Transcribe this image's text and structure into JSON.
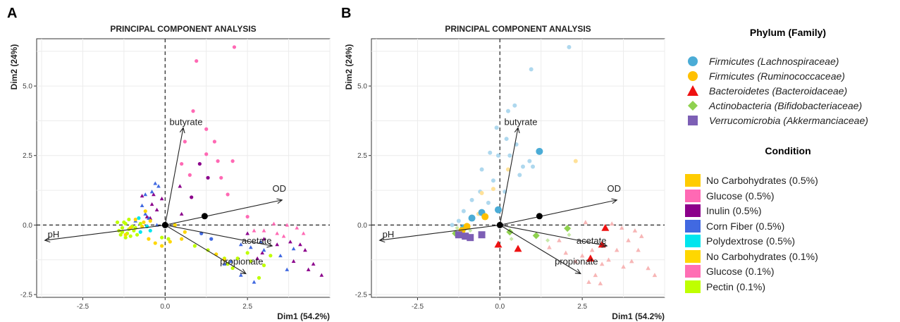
{
  "panel_labels": [
    "A",
    "B"
  ],
  "legend": {
    "phylum_title": "Phylum (Family)",
    "phylum": [
      {
        "label": "Firmicutes (Lachnospiraceae)",
        "color": "#4bacd6",
        "shape": "circle"
      },
      {
        "label": "Firmicutes (Ruminococcaceae)",
        "color": "#ffc000",
        "shape": "circle"
      },
      {
        "label": "Bacteroidetes (Bacteroidaceae)",
        "color": "#ee1111",
        "shape": "triangle"
      },
      {
        "label": "Actinobacteria (Bifidobacteriaceae)",
        "color": "#8fd14f",
        "shape": "diamond"
      },
      {
        "label": "Verrucomicrobia (Akkermanciaceae)",
        "color": "#7d5fb5",
        "shape": "square"
      }
    ],
    "condition_title": "Condition",
    "conditions": [
      {
        "label": "No Carbohydrates (0.5%)",
        "color": "#ffcc00"
      },
      {
        "label": "Glucose (0.5%)",
        "color": "#ff69b4"
      },
      {
        "label": "Inulin (0.5%)",
        "color": "#8b008b"
      },
      {
        "label": "Corn Fiber (0.5%)",
        "color": "#4169e1"
      },
      {
        "label": "Polydextrose (0.5%)",
        "color": "#00e5ee"
      },
      {
        "label": "No Carbohydrates (0.1%)",
        "color": "#ffd700"
      },
      {
        "label": "Glucose (0.1%)",
        "color": "#ff6eb4"
      },
      {
        "label": "Pectin (0.1%)",
        "color": "#bfff00"
      }
    ]
  },
  "chart_data": [
    {
      "type": "scatter",
      "title": "PRINCIPAL COMPONENT ANALYSIS",
      "xlabel": "Dim1 (54.2%)",
      "ylabel": "Dim2 (24%)",
      "xlim": [
        -3.9,
        5.0
      ],
      "ylim": [
        -2.6,
        6.7
      ],
      "xticks": [
        -2.5,
        0.0,
        2.5
      ],
      "xtick_labels": [
        "-2.5",
        "0.0",
        "2.5"
      ],
      "yticks": [
        -2.5,
        0.0,
        2.5,
        5.0
      ],
      "ytick_labels": [
        "-2.5",
        "0.0",
        "2.5",
        "5.0"
      ],
      "grid": true,
      "vectors": [
        {
          "name": "butyrate",
          "x": 0.55,
          "y": 3.5
        },
        {
          "name": "OD",
          "x": 3.55,
          "y": 0.9
        },
        {
          "name": "pH",
          "x": -3.65,
          "y": -0.55
        },
        {
          "name": "acetate",
          "x": 3.25,
          "y": -0.75
        },
        {
          "name": "propionate",
          "x": 2.45,
          "y": -1.75
        }
      ],
      "centroids": [
        {
          "x": 0.0,
          "y": 0.0
        },
        {
          "x": 1.2,
          "y": 0.32
        }
      ],
      "series": [
        {
          "name": "Glucose",
          "color": "#ff69b4",
          "points": [
            [
              2.1,
              6.4
            ],
            [
              0.95,
              5.9
            ],
            [
              0.85,
              4.1
            ],
            [
              1.25,
              3.45
            ],
            [
              1.5,
              3.0
            ],
            [
              1.25,
              2.55
            ],
            [
              0.6,
              3.0
            ],
            [
              2.05,
              2.3
            ],
            [
              1.6,
              2.3
            ],
            [
              0.5,
              2.2
            ],
            [
              0.75,
              1.8
            ],
            [
              1.7,
              1.7
            ],
            [
              1.9,
              1.1
            ],
            [
              2.5,
              0.3
            ],
            [
              3.3,
              0.05
            ],
            [
              3.7,
              0.0
            ],
            [
              4.0,
              -0.1
            ],
            [
              3.6,
              -0.4
            ],
            [
              4.2,
              -0.3
            ],
            [
              3.0,
              -0.2
            ],
            [
              2.7,
              -0.2
            ],
            [
              3.4,
              -0.3
            ]
          ]
        },
        {
          "name": "Inulin",
          "color": "#8b008b",
          "points": [
            [
              -0.35,
              1.1
            ],
            [
              -0.25,
              0.55
            ],
            [
              -0.45,
              0.25
            ],
            [
              -0.1,
              0.95
            ],
            [
              0.45,
              1.4
            ],
            [
              0.8,
              1.0
            ],
            [
              0.5,
              0.4
            ],
            [
              -0.7,
              1.05
            ],
            [
              -0.4,
              0.75
            ],
            [
              1.05,
              2.2
            ],
            [
              1.3,
              1.7
            ],
            [
              -0.55,
              0.3
            ],
            [
              2.5,
              -0.3
            ],
            [
              3.0,
              -0.5
            ],
            [
              3.4,
              -0.7
            ],
            [
              3.8,
              -0.6
            ],
            [
              4.1,
              -0.7
            ],
            [
              4.35,
              -1.6
            ],
            [
              4.5,
              -1.4
            ],
            [
              4.75,
              -1.8
            ],
            [
              4.25,
              -0.9
            ],
            [
              3.9,
              -1.3
            ],
            [
              2.8,
              -1.2
            ],
            [
              2.95,
              -1.0
            ]
          ]
        },
        {
          "name": "Corn Fiber",
          "color": "#4169e1",
          "points": [
            [
              -0.3,
              1.5
            ],
            [
              -0.4,
              1.2
            ],
            [
              -0.6,
              0.4
            ],
            [
              -0.7,
              0.7
            ],
            [
              -0.9,
              0.15
            ],
            [
              -0.25,
              0.0
            ],
            [
              1.1,
              -0.3
            ],
            [
              1.4,
              -0.5
            ],
            [
              2.3,
              -0.7
            ],
            [
              2.6,
              -0.8
            ],
            [
              2.9,
              -0.6
            ],
            [
              3.0,
              -0.9
            ],
            [
              3.5,
              -1.1
            ],
            [
              3.7,
              -1.6
            ],
            [
              3.9,
              -0.85
            ],
            [
              1.8,
              -1.4
            ],
            [
              2.0,
              -1.3
            ],
            [
              2.7,
              -2.05
            ],
            [
              2.3,
              -1.8
            ],
            [
              -0.5,
              0.25
            ],
            [
              -0.6,
              1.1
            ],
            [
              -0.2,
              1.4
            ]
          ]
        },
        {
          "name": "Pectin",
          "color": "#bfff00",
          "points": [
            [
              -1.3,
              -0.1
            ],
            [
              -1.2,
              0.05
            ],
            [
              -1.4,
              -0.2
            ],
            [
              -1.15,
              -0.3
            ],
            [
              -1.0,
              -0.05
            ],
            [
              -1.25,
              0.1
            ],
            [
              -1.1,
              -0.15
            ],
            [
              -1.35,
              -0.35
            ],
            [
              -1.05,
              -0.4
            ],
            [
              -0.95,
              -0.2
            ],
            [
              -1.45,
              0.1
            ],
            [
              -1.3,
              -0.25
            ],
            [
              -1.2,
              -0.45
            ],
            [
              -0.85,
              -0.35
            ],
            [
              -0.75,
              0.05
            ],
            [
              -0.9,
              -0.1
            ],
            [
              -1.1,
              0.2
            ],
            [
              1.9,
              -1.4
            ],
            [
              2.05,
              -1.55
            ],
            [
              2.2,
              -1.2
            ],
            [
              2.5,
              -1.0
            ],
            [
              2.6,
              -1.3
            ],
            [
              3.2,
              -1.1
            ],
            [
              3.0,
              -1.45
            ],
            [
              1.8,
              -1.2
            ],
            [
              0.1,
              -0.5
            ],
            [
              -0.1,
              -0.45
            ],
            [
              2.85,
              -1.9
            ],
            [
              1.3,
              -0.9
            ],
            [
              0.9,
              -0.75
            ]
          ]
        },
        {
          "name": "No Carbohydrates",
          "color": "#ffd700",
          "points": [
            [
              -1.05,
              -0.1
            ],
            [
              -0.9,
              0.2
            ],
            [
              -0.7,
              -0.05
            ],
            [
              -0.5,
              -0.5
            ],
            [
              -0.3,
              -0.65
            ],
            [
              -0.1,
              -0.75
            ],
            [
              0.15,
              -0.6
            ],
            [
              0.5,
              -0.5
            ],
            [
              -0.6,
              0.5
            ],
            [
              -0.65,
              0.1
            ],
            [
              -1.2,
              -0.35
            ],
            [
              0.3,
              0.0
            ],
            [
              0.6,
              -0.25
            ],
            [
              1.55,
              -1.05
            ],
            [
              1.8,
              -1.25
            ],
            [
              -0.45,
              0.15
            ]
          ]
        },
        {
          "name": "Polydextrose",
          "color": "#00e5ee",
          "points": [
            [
              -0.55,
              -0.05
            ],
            [
              -0.75,
              -0.25
            ],
            [
              -0.8,
              0.25
            ],
            [
              -0.45,
              -0.2
            ]
          ]
        }
      ]
    },
    {
      "type": "scatter",
      "title": "PRINCIPAL COMPONENT ANALYSIS",
      "xlabel": "Dim1 (54.2%)",
      "ylabel": "Dim2 (24%)",
      "xlim": [
        -3.9,
        5.0
      ],
      "ylim": [
        -2.6,
        6.7
      ],
      "xticks": [
        -2.5,
        0.0,
        2.5
      ],
      "xtick_labels": [
        "-2.5",
        "0.0",
        "2.5"
      ],
      "yticks": [
        -2.5,
        0.0,
        2.5,
        5.0
      ],
      "ytick_labels": [
        "-2.5",
        "0.0",
        "2.5",
        "5.0"
      ],
      "grid": true,
      "vectors": [
        {
          "name": "butyrate",
          "x": 0.55,
          "y": 3.5
        },
        {
          "name": "OD",
          "x": 3.55,
          "y": 0.9
        },
        {
          "name": "pH",
          "x": -3.65,
          "y": -0.55
        },
        {
          "name": "acetate",
          "x": 3.25,
          "y": -0.75
        },
        {
          "name": "propionate",
          "x": 2.45,
          "y": -1.75
        }
      ],
      "centroids": [
        {
          "x": 0.0,
          "y": 0.0
        },
        {
          "x": 1.2,
          "y": 0.32
        }
      ],
      "background_points": [
        {
          "name": "Firmicutes (Lachnospiraceae)",
          "color": "#aed8ee",
          "shape": "circle",
          "points": [
            [
              2.1,
              6.4
            ],
            [
              0.95,
              5.6
            ],
            [
              0.45,
              4.3
            ],
            [
              0.25,
              4.1
            ],
            [
              -0.1,
              3.5
            ],
            [
              0.2,
              3.1
            ],
            [
              0.5,
              2.9
            ],
            [
              -0.3,
              2.6
            ],
            [
              -0.05,
              2.5
            ],
            [
              0.3,
              2.5
            ],
            [
              -0.55,
              2.0
            ],
            [
              -0.2,
              1.6
            ],
            [
              -0.6,
              1.2
            ],
            [
              -0.85,
              0.9
            ],
            [
              -1.1,
              0.5
            ],
            [
              -1.25,
              0.15
            ],
            [
              -1.45,
              0.0
            ],
            [
              0.9,
              2.3
            ],
            [
              1.0,
              2.1
            ],
            [
              0.7,
              2.1
            ],
            [
              0.6,
              1.8
            ],
            [
              0.15,
              1.2
            ],
            [
              -0.35,
              0.8
            ]
          ]
        },
        {
          "name": "Bacteroidetes (Bacteroidaceae)",
          "color": "#f7b6b6",
          "shape": "triangle",
          "points": [
            [
              2.6,
              0.1
            ],
            [
              3.4,
              0.05
            ],
            [
              3.7,
              -0.1
            ],
            [
              4.1,
              -0.2
            ],
            [
              4.3,
              -0.4
            ],
            [
              3.9,
              -0.55
            ],
            [
              3.55,
              -0.9
            ],
            [
              3.3,
              -1.25
            ],
            [
              3.75,
              -1.5
            ],
            [
              4.0,
              -1.3
            ],
            [
              4.5,
              -1.55
            ],
            [
              4.7,
              -1.8
            ],
            [
              4.2,
              -0.9
            ],
            [
              2.8,
              -0.9
            ],
            [
              2.5,
              -1.1
            ],
            [
              2.3,
              -1.3
            ],
            [
              2.9,
              -1.8
            ],
            [
              3.1,
              -1.4
            ],
            [
              2.0,
              -1.0
            ],
            [
              1.5,
              -0.8
            ],
            [
              2.7,
              -2.05
            ],
            [
              3.05,
              -2.1
            ],
            [
              1.8,
              -0.55
            ]
          ]
        },
        {
          "name": "Actinobacteria (Bifidobacteriaceae)",
          "color": "#c7e8a7",
          "shape": "diamond",
          "points": [
            [
              -1.3,
              -0.1
            ],
            [
              -1.15,
              -0.3
            ],
            [
              -1.0,
              -0.05
            ],
            [
              -0.9,
              -0.2
            ],
            [
              0.35,
              -0.5
            ],
            [
              1.45,
              -0.55
            ],
            [
              2.1,
              -0.35
            ]
          ]
        },
        {
          "name": "Firmicutes (Ruminococcaceae)",
          "color": "#ffe199",
          "shape": "circle",
          "points": [
            [
              -0.2,
              1.3
            ],
            [
              0.25,
              2.0
            ],
            [
              -0.55,
              1.15
            ],
            [
              2.3,
              2.3
            ],
            [
              -0.65,
              0.4
            ]
          ]
        }
      ],
      "highlight_points": [
        {
          "name": "Firmicutes (Lachnospiraceae)",
          "color": "#4bacd6",
          "shape": "circle",
          "points": [
            [
              1.2,
              2.65
            ],
            [
              -0.05,
              0.55
            ],
            [
              -0.55,
              0.45
            ],
            [
              -0.85,
              0.25
            ],
            [
              -1.1,
              -0.1
            ]
          ]
        },
        {
          "name": "Firmicutes (Ruminococcaceae)",
          "color": "#ffc000",
          "shape": "circle",
          "points": [
            [
              -0.45,
              0.3
            ],
            [
              -1.0,
              -0.05
            ],
            [
              -1.15,
              -0.2
            ]
          ]
        },
        {
          "name": "Bacteroidetes (Bacteroidaceae)",
          "color": "#ee1111",
          "shape": "triangle",
          "points": [
            [
              -0.05,
              -0.7
            ],
            [
              0.55,
              -0.85
            ],
            [
              2.75,
              -1.2
            ],
            [
              3.1,
              -0.7
            ],
            [
              3.2,
              -0.1
            ]
          ]
        },
        {
          "name": "Actinobacteria (Bifidobacteriaceae)",
          "color": "#8fd14f",
          "shape": "diamond",
          "points": [
            [
              -1.35,
              -0.3
            ],
            [
              0.3,
              -0.25
            ],
            [
              1.1,
              -0.38
            ],
            [
              2.05,
              -0.12
            ]
          ]
        },
        {
          "name": "Verrucomicrobia (Akkermanciaceae)",
          "color": "#7d5fb5",
          "shape": "square",
          "points": [
            [
              -1.05,
              -0.4
            ],
            [
              -0.9,
              -0.45
            ],
            [
              -1.25,
              -0.35
            ],
            [
              -0.55,
              -0.35
            ]
          ]
        }
      ]
    }
  ]
}
